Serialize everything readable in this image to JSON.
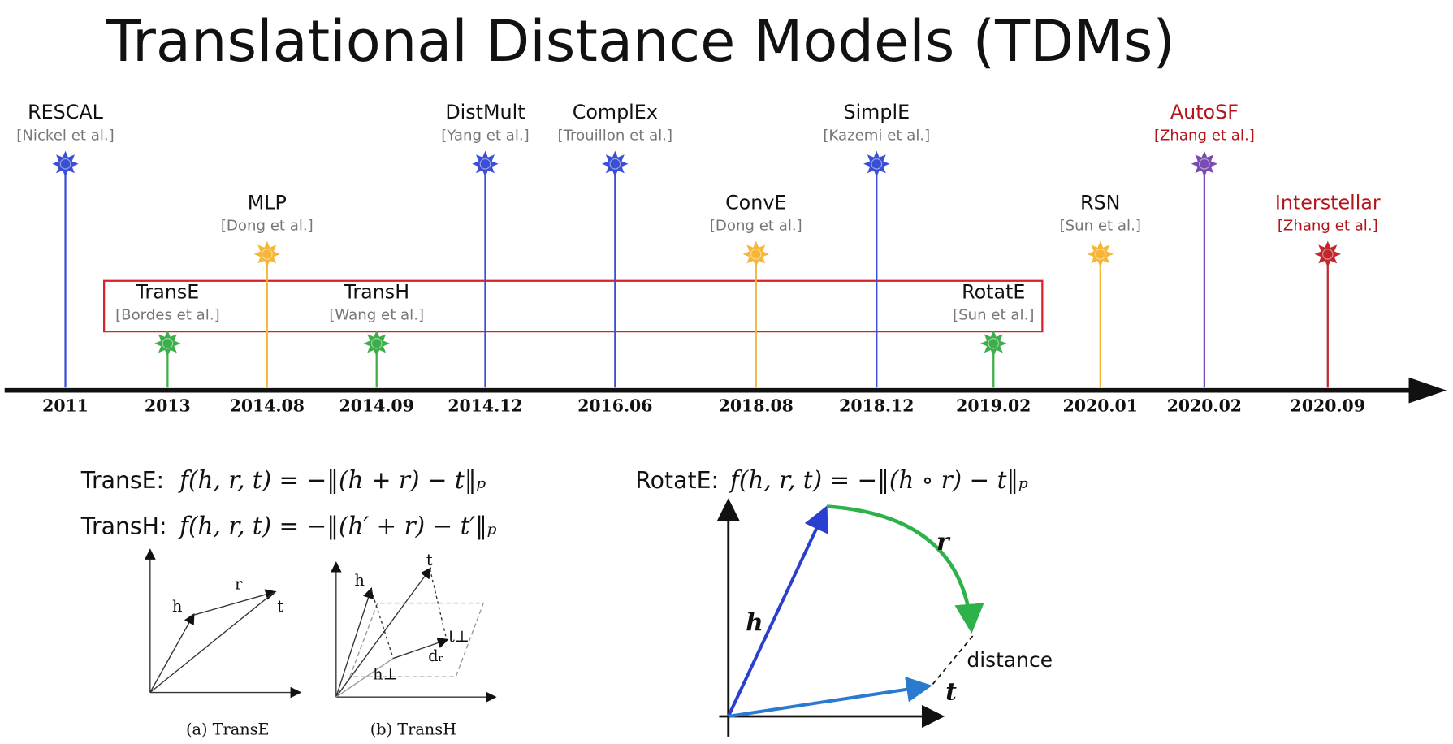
{
  "title": "Translational Distance Models (TDMs)",
  "timeline": [
    {
      "name": "RESCAL",
      "citation": "[Nickel et al.]",
      "date": "2011",
      "color": "#3a4fd6"
    },
    {
      "name": "TransE",
      "citation": "[Bordes et al.]",
      "date": "2013",
      "color": "#3cae4a"
    },
    {
      "name": "MLP",
      "citation": "[Dong et al.]",
      "date": "2014.08",
      "color": "#f5b63a"
    },
    {
      "name": "TransH",
      "citation": "[Wang et al.]",
      "date": "2014.09",
      "color": "#3cae4a"
    },
    {
      "name": "DistMult",
      "citation": "[Yang et al.]",
      "date": "2014.12",
      "color": "#3a4fd6"
    },
    {
      "name": "ComplEx",
      "citation": "[Trouillon et al.]",
      "date": "2016.06",
      "color": "#3a4fd6"
    },
    {
      "name": "ConvE",
      "citation": "[Dong et al.]",
      "date": "2018.08",
      "color": "#f5b63a"
    },
    {
      "name": "SimplE",
      "citation": "[Kazemi et al.]",
      "date": "2018.12",
      "color": "#3a4fd6"
    },
    {
      "name": "RotatE",
      "citation": "[Sun et al.]",
      "date": "2019.02",
      "color": "#3cae4a"
    },
    {
      "name": "RSN",
      "citation": "[Sun et al.]",
      "date": "2020.01",
      "color": "#f5b63a"
    },
    {
      "name": "AutoSF",
      "citation": "[Zhang et al.]",
      "date": "2020.02",
      "color": "#7a4bb5",
      "label_color": "#b3151b"
    },
    {
      "name": "Interstellar",
      "citation": "[Zhang et al.]",
      "date": "2020.09",
      "color": "#c0282d",
      "label_color": "#b3151b"
    }
  ],
  "formulas": [
    {
      "label": "TransE:",
      "formula": "f(h, r, t) = −‖(h + r) − t‖ₚ"
    },
    {
      "label": "TransH:",
      "formula": "f(h, r, t) = −‖(h′ + r) − t′‖ₚ"
    },
    {
      "label": "RotatE:",
      "formula": "f(h, r, t) = −‖(h ∘ r) − t‖ₚ"
    }
  ],
  "transe_diagram": {
    "h": "h",
    "r": "r",
    "t": "t",
    "caption": "(a) TransE"
  },
  "transh_diagram": {
    "h": "h",
    "t": "t",
    "h_perp": "h⊥",
    "t_perp": "t⊥",
    "d_r": "dᵣ",
    "caption": "(b) TransH"
  },
  "rotate_diagram": {
    "h": "h",
    "r": "r",
    "t": "t",
    "distance": "distance"
  }
}
